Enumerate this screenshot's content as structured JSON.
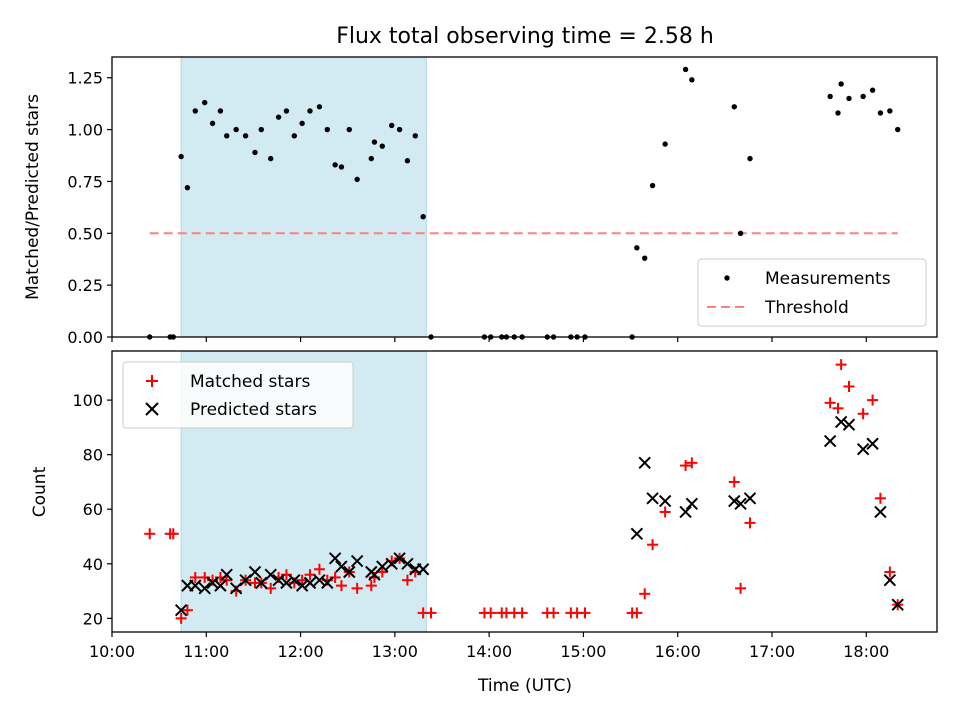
{
  "figure": {
    "title": "Flux total observing time = 2.58 h"
  },
  "colors": {
    "shade": "#add8e6",
    "threshold": "#ff7f7f",
    "measurement": "#000000",
    "matched": "#ff0000",
    "predicted": "#000000",
    "axis": "#000000",
    "legend_border": "#cccccc"
  },
  "chart_data": [
    {
      "type": "scatter",
      "panel": "top",
      "ylabel": "Matched/Predicted stars",
      "xlabel": "",
      "xlim": [
        "10:00",
        "18:45"
      ],
      "ylim": [
        0,
        1.35
      ],
      "x_ticks": [
        "10:00",
        "11:00",
        "12:00",
        "13:00",
        "14:00",
        "15:00",
        "16:00",
        "17:00",
        "18:00"
      ],
      "y_ticks": [
        "0.00",
        "0.25",
        "0.50",
        "0.75",
        "1.00",
        "1.25"
      ],
      "shaded_region": [
        "10:44",
        "13:20"
      ],
      "legend": {
        "placement": "lower right",
        "entries": [
          "Measurements",
          "Threshold"
        ]
      },
      "threshold": {
        "name": "Threshold",
        "y": 0.5,
        "x": [
          "10:24",
          "18:20"
        ],
        "style": "dashed"
      },
      "series": [
        {
          "name": "Measurements",
          "marker": "dot",
          "points": [
            [
              "10:24",
              0.0
            ],
            [
              "10:37",
              0.0
            ],
            [
              "10:39",
              0.0
            ],
            [
              "10:44",
              0.87
            ],
            [
              "10:48",
              0.72
            ],
            [
              "10:53",
              1.09
            ],
            [
              "10:59",
              1.13
            ],
            [
              "11:04",
              1.03
            ],
            [
              "11:09",
              1.09
            ],
            [
              "11:13",
              0.97
            ],
            [
              "11:19",
              1.0
            ],
            [
              "11:25",
              0.97
            ],
            [
              "11:31",
              0.89
            ],
            [
              "11:35",
              1.0
            ],
            [
              "11:41",
              0.86
            ],
            [
              "11:46",
              1.06
            ],
            [
              "11:51",
              1.09
            ],
            [
              "11:56",
              0.97
            ],
            [
              "12:01",
              1.03
            ],
            [
              "12:06",
              1.09
            ],
            [
              "12:12",
              1.11
            ],
            [
              "12:17",
              1.0
            ],
            [
              "12:22",
              0.83
            ],
            [
              "12:26",
              0.82
            ],
            [
              "12:31",
              1.0
            ],
            [
              "12:36",
              0.76
            ],
            [
              "12:45",
              0.86
            ],
            [
              "12:47",
              0.94
            ],
            [
              "12:52",
              0.92
            ],
            [
              "12:58",
              1.02
            ],
            [
              "13:03",
              1.0
            ],
            [
              "13:08",
              0.85
            ],
            [
              "13:13",
              0.97
            ],
            [
              "13:18",
              0.58
            ],
            [
              "13:23",
              0.0
            ],
            [
              "13:57",
              0.0
            ],
            [
              "14:01",
              0.0
            ],
            [
              "14:08",
              0.0
            ],
            [
              "14:11",
              0.0
            ],
            [
              "14:16",
              0.0
            ],
            [
              "14:21",
              0.0
            ],
            [
              "14:37",
              0.0
            ],
            [
              "14:41",
              0.0
            ],
            [
              "14:52",
              0.0
            ],
            [
              "14:56",
              0.0
            ],
            [
              "15:01",
              0.0
            ],
            [
              "15:31",
              0.0
            ],
            [
              "15:34",
              0.43
            ],
            [
              "15:39",
              0.38
            ],
            [
              "15:44",
              0.73
            ],
            [
              "15:52",
              0.93
            ],
            [
              "16:05",
              1.29
            ],
            [
              "16:09",
              1.24
            ],
            [
              "16:36",
              1.11
            ],
            [
              "16:40",
              0.5
            ],
            [
              "16:46",
              0.86
            ],
            [
              "17:37",
              1.16
            ],
            [
              "17:42",
              1.08
            ],
            [
              "17:44",
              1.22
            ],
            [
              "17:49",
              1.15
            ],
            [
              "17:58",
              1.16
            ],
            [
              "18:04",
              1.19
            ],
            [
              "18:09",
              1.08
            ],
            [
              "18:15",
              1.09
            ],
            [
              "18:20",
              1.0
            ]
          ]
        }
      ]
    },
    {
      "type": "scatter",
      "panel": "bottom",
      "ylabel": "Count",
      "xlabel": "Time (UTC)",
      "xlim": [
        "10:00",
        "18:45"
      ],
      "ylim": [
        15,
        118
      ],
      "x_ticks": [
        "10:00",
        "11:00",
        "12:00",
        "13:00",
        "14:00",
        "15:00",
        "16:00",
        "17:00",
        "18:00"
      ],
      "y_ticks": [
        "20",
        "40",
        "60",
        "80",
        "100"
      ],
      "shaded_region": [
        "10:44",
        "13:20"
      ],
      "legend": {
        "placement": "upper left",
        "entries": [
          "Matched stars",
          "Predicted stars"
        ]
      },
      "series": [
        {
          "name": "Matched stars",
          "marker": "plus",
          "points": [
            [
              "10:24",
              51
            ],
            [
              "10:37",
              51
            ],
            [
              "10:39",
              51
            ],
            [
              "10:44",
              20
            ],
            [
              "10:48",
              23
            ],
            [
              "10:53",
              35
            ],
            [
              "10:59",
              35
            ],
            [
              "11:04",
              34
            ],
            [
              "11:09",
              35
            ],
            [
              "11:13",
              34
            ],
            [
              "11:19",
              30
            ],
            [
              "11:25",
              34
            ],
            [
              "11:31",
              33
            ],
            [
              "11:35",
              33
            ],
            [
              "11:41",
              31
            ],
            [
              "11:46",
              35
            ],
            [
              "11:51",
              36
            ],
            [
              "11:56",
              33
            ],
            [
              "12:01",
              34
            ],
            [
              "12:06",
              36
            ],
            [
              "12:12",
              38
            ],
            [
              "12:17",
              34
            ],
            [
              "12:22",
              35
            ],
            [
              "12:26",
              32
            ],
            [
              "12:31",
              37
            ],
            [
              "12:36",
              31
            ],
            [
              "12:45",
              32
            ],
            [
              "12:47",
              35
            ],
            [
              "12:52",
              37
            ],
            [
              "12:58",
              41
            ],
            [
              "13:03",
              42
            ],
            [
              "13:08",
              34
            ],
            [
              "13:13",
              37
            ],
            [
              "13:18",
              22
            ],
            [
              "13:23",
              22
            ],
            [
              "13:57",
              22
            ],
            [
              "14:01",
              22
            ],
            [
              "14:08",
              22
            ],
            [
              "14:11",
              22
            ],
            [
              "14:16",
              22
            ],
            [
              "14:21",
              22
            ],
            [
              "14:37",
              22
            ],
            [
              "14:41",
              22
            ],
            [
              "14:52",
              22
            ],
            [
              "14:56",
              22
            ],
            [
              "15:01",
              22
            ],
            [
              "15:31",
              22
            ],
            [
              "15:34",
              22
            ],
            [
              "15:39",
              29
            ],
            [
              "15:44",
              47
            ],
            [
              "15:52",
              59
            ],
            [
              "16:05",
              76
            ],
            [
              "16:09",
              77
            ],
            [
              "16:36",
              70
            ],
            [
              "16:40",
              31
            ],
            [
              "16:46",
              55
            ],
            [
              "17:37",
              99
            ],
            [
              "17:42",
              97
            ],
            [
              "17:44",
              113
            ],
            [
              "17:49",
              105
            ],
            [
              "17:58",
              95
            ],
            [
              "18:04",
              100
            ],
            [
              "18:09",
              64
            ],
            [
              "18:15",
              37
            ],
            [
              "18:20",
              25
            ]
          ]
        },
        {
          "name": "Predicted stars",
          "marker": "x",
          "points": [
            [
              "10:44",
              23
            ],
            [
              "10:48",
              32
            ],
            [
              "10:53",
              32
            ],
            [
              "10:59",
              31
            ],
            [
              "11:04",
              33
            ],
            [
              "11:09",
              32
            ],
            [
              "11:13",
              36
            ],
            [
              "11:19",
              31
            ],
            [
              "11:25",
              34
            ],
            [
              "11:31",
              37
            ],
            [
              "11:35",
              33
            ],
            [
              "11:41",
              36
            ],
            [
              "11:46",
              34
            ],
            [
              "11:51",
              33
            ],
            [
              "11:56",
              34
            ],
            [
              "12:01",
              32
            ],
            [
              "12:06",
              33
            ],
            [
              "12:12",
              34
            ],
            [
              "12:17",
              33
            ],
            [
              "12:22",
              42
            ],
            [
              "12:26",
              39
            ],
            [
              "12:31",
              37
            ],
            [
              "12:36",
              41
            ],
            [
              "12:45",
              37
            ],
            [
              "12:47",
              36
            ],
            [
              "12:52",
              39
            ],
            [
              "12:58",
              40
            ],
            [
              "13:03",
              42
            ],
            [
              "13:08",
              40
            ],
            [
              "13:13",
              38
            ],
            [
              "13:18",
              38
            ],
            [
              "15:34",
              51
            ],
            [
              "15:39",
              77
            ],
            [
              "15:44",
              64
            ],
            [
              "15:52",
              63
            ],
            [
              "16:05",
              59
            ],
            [
              "16:09",
              62
            ],
            [
              "16:36",
              63
            ],
            [
              "16:40",
              62
            ],
            [
              "16:46",
              64
            ],
            [
              "17:37",
              85
            ],
            [
              "17:44",
              92
            ],
            [
              "17:49",
              91
            ],
            [
              "17:58",
              82
            ],
            [
              "18:04",
              84
            ],
            [
              "18:09",
              59
            ],
            [
              "18:15",
              34
            ],
            [
              "18:20",
              25
            ]
          ]
        }
      ]
    }
  ]
}
